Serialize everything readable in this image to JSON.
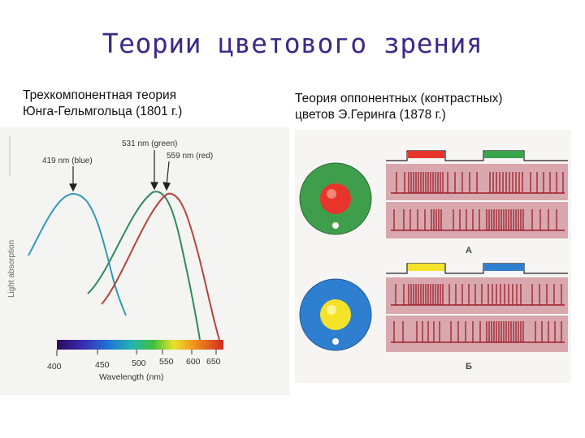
{
  "slide": {
    "title": "Теории цветового зрения"
  },
  "left": {
    "caption_line1": "Трехкомпонентная теория",
    "caption_line2": "Юнга-Гельмгольца (1801 г.)",
    "figure": {
      "y_label": "Light absorption",
      "x_label": "Wavelength (nm)",
      "peak_blue": "419 nm (blue)",
      "peak_green": "531 nm (green)",
      "peak_red": "559 nm (red)",
      "ticks": [
        "400",
        "450",
        "500",
        "550",
        "600",
        "650"
      ],
      "colors": {
        "blue": "#2f9bb8",
        "green": "#2f8a5e",
        "red": "#b3443a"
      }
    }
  },
  "right": {
    "caption_line1": "Теория оппонентных (контрастных)",
    "caption_line2": "цветов Э.Геринга (1878 г.)",
    "figure": {
      "label_a": "А",
      "label_b": "Б",
      "colors": {
        "strip": "#d9a7ae",
        "stim_red": "#e8352b",
        "stim_green": "#3aa44a",
        "stim_yellow": "#f5e32a",
        "stim_blue": "#2f7fd0",
        "spike": "#9b1f2a",
        "ring_green": "#3f9e4b",
        "ring_blue": "#2f7fd0"
      }
    }
  }
}
